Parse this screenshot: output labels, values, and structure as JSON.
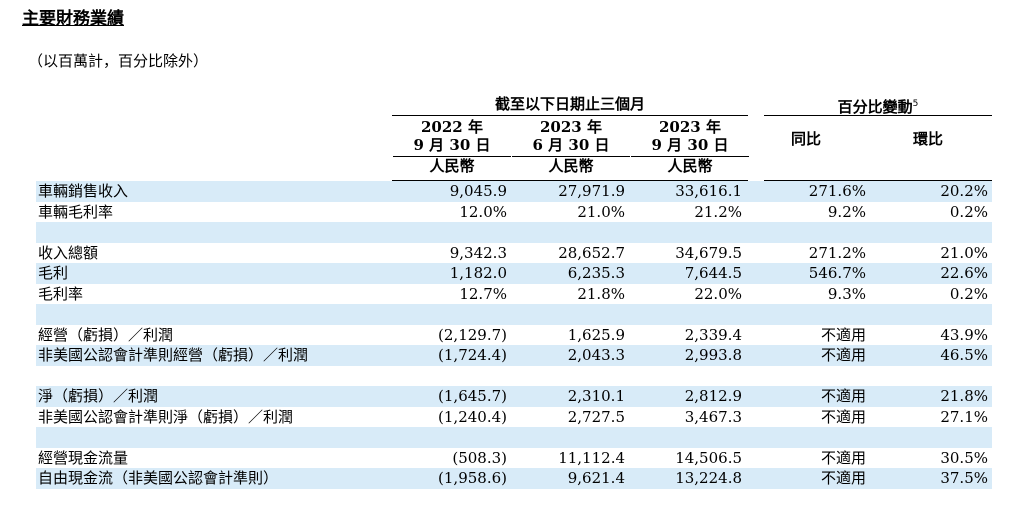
{
  "title": "主要財務業績",
  "subtitle": "（以百萬計，百分比除外）",
  "header": {
    "period_group": "截至以下日期止三個月",
    "pct_group": "百分比變動",
    "pct_group_footnote": "5",
    "columns": [
      {
        "year": "2022 年",
        "date": "9 月 30 日",
        "currency": "人民幣"
      },
      {
        "year": "2023 年",
        "date": "6 月 30 日",
        "currency": "人民幣"
      },
      {
        "year": "2023 年",
        "date": "9 月 30 日",
        "currency": "人民幣"
      }
    ],
    "yoy": "同比",
    "qoq": "環比"
  },
  "rows": [
    {
      "label": "車輛銷售收入",
      "v1": "9,045.9",
      "v2": "27,971.9",
      "v3": "33,616.1",
      "yoy": "271.6%",
      "qoq": "20.2%",
      "shade": true
    },
    {
      "label": "車輛毛利率",
      "v1": "12.0%",
      "v2": "21.0%",
      "v3": "21.2%",
      "yoy": "9.2%",
      "qoq": "0.2%",
      "shade": false
    },
    {
      "label": "",
      "v1": "",
      "v2": "",
      "v3": "",
      "yoy": "",
      "qoq": "",
      "shade": true
    },
    {
      "label": "收入總額",
      "v1": "9,342.3",
      "v2": "28,652.7",
      "v3": "34,679.5",
      "yoy": "271.2%",
      "qoq": "21.0%",
      "shade": false
    },
    {
      "label": "毛利",
      "v1": "1,182.0",
      "v2": "6,235.3",
      "v3": "7,644.5",
      "yoy": "546.7%",
      "qoq": "22.6%",
      "shade": true
    },
    {
      "label": "毛利率",
      "v1": "12.7%",
      "v2": "21.8%",
      "v3": "22.0%",
      "yoy": "9.3%",
      "qoq": "0.2%",
      "shade": false
    },
    {
      "label": "",
      "v1": "",
      "v2": "",
      "v3": "",
      "yoy": "",
      "qoq": "",
      "shade": true
    },
    {
      "label": "經營（虧損）／利潤",
      "v1": "(2,129.7)",
      "v2": "1,625.9",
      "v3": "2,339.4",
      "yoy": "不適用",
      "qoq": "43.9%",
      "shade": false
    },
    {
      "label": "非美國公認會計準則經營（虧損）／利潤",
      "v1": "(1,724.4)",
      "v2": "2,043.3",
      "v3": "2,993.8",
      "yoy": "不適用",
      "qoq": "46.5%",
      "shade": true
    },
    {
      "label": "",
      "v1": "",
      "v2": "",
      "v3": "",
      "yoy": "",
      "qoq": "",
      "shade": false
    },
    {
      "label": "淨（虧損）／利潤",
      "v1": "(1,645.7)",
      "v2": "2,310.1",
      "v3": "2,812.9",
      "yoy": "不適用",
      "qoq": "21.8%",
      "shade": true
    },
    {
      "label": "非美國公認會計準則淨（虧損）／利潤",
      "v1": "(1,240.4)",
      "v2": "2,727.5",
      "v3": "3,467.3",
      "yoy": "不適用",
      "qoq": "27.1%",
      "shade": false
    },
    {
      "label": "",
      "v1": "",
      "v2": "",
      "v3": "",
      "yoy": "",
      "qoq": "",
      "shade": true
    },
    {
      "label": "經營現金流量",
      "v1": "(508.3)",
      "v2": "11,112.4",
      "v3": "14,506.5",
      "yoy": "不適用",
      "qoq": "30.5%",
      "shade": false
    },
    {
      "label": "自由現金流（非美國公認會計準則）",
      "v1": "(1,958.6)",
      "v2": "9,621.4",
      "v3": "13,224.8",
      "yoy": "不適用",
      "qoq": "37.5%",
      "shade": true
    }
  ]
}
